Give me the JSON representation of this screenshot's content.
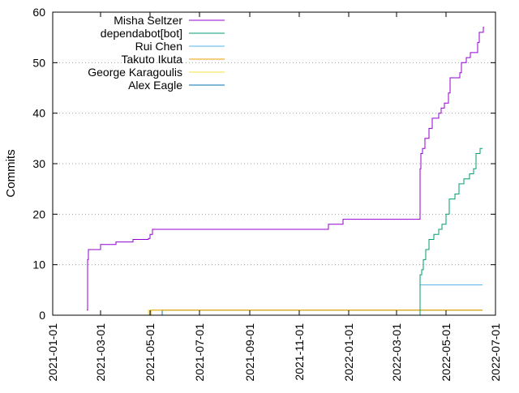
{
  "chart_data": {
    "type": "line",
    "title": "",
    "xlabel": "",
    "ylabel": "Commits",
    "x_type": "date",
    "xlim": [
      "2021-01-01",
      "2022-07-01"
    ],
    "ylim": [
      0,
      60
    ],
    "x_ticks": [
      "2021-01-01",
      "2021-03-01",
      "2021-05-01",
      "2021-07-01",
      "2021-09-01",
      "2021-11-01",
      "2022-01-01",
      "2022-03-01",
      "2022-05-01",
      "2022-07-01"
    ],
    "y_ticks": [
      0,
      10,
      20,
      30,
      40,
      50,
      60
    ],
    "grid": true,
    "grid_style": "dotted",
    "legend_position": "top-left",
    "step": true,
    "series": [
      {
        "name": "Misha Seltzer",
        "color": "#9400d3",
        "points": [
          [
            "2021-02-12",
            1
          ],
          [
            "2021-02-13",
            11
          ],
          [
            "2021-02-14",
            13
          ],
          [
            "2021-03-01",
            14
          ],
          [
            "2021-03-20",
            14.5
          ],
          [
            "2021-04-10",
            15
          ],
          [
            "2021-04-29",
            15.2
          ],
          [
            "2021-05-01",
            16
          ],
          [
            "2021-05-04",
            17
          ],
          [
            "2021-12-06",
            17
          ],
          [
            "2021-12-07",
            18
          ],
          [
            "2021-12-24",
            18
          ],
          [
            "2021-12-25",
            19
          ],
          [
            "2022-03-29",
            19
          ],
          [
            "2022-03-30",
            29
          ],
          [
            "2022-03-31",
            32
          ],
          [
            "2022-04-02",
            33
          ],
          [
            "2022-04-05",
            35
          ],
          [
            "2022-04-10",
            37
          ],
          [
            "2022-04-14",
            39
          ],
          [
            "2022-04-22",
            40
          ],
          [
            "2022-04-25",
            41
          ],
          [
            "2022-04-29",
            42
          ],
          [
            "2022-05-04",
            44
          ],
          [
            "2022-05-06",
            47
          ],
          [
            "2022-05-18",
            48
          ],
          [
            "2022-05-20",
            50
          ],
          [
            "2022-05-26",
            51
          ],
          [
            "2022-05-31",
            52
          ],
          [
            "2022-06-09",
            54
          ],
          [
            "2022-06-11",
            56
          ],
          [
            "2022-06-15",
            56
          ],
          [
            "2022-06-16",
            57
          ],
          [
            "2022-06-17",
            57
          ]
        ]
      },
      {
        "name": "dependabot[bot]",
        "color": "#009e73",
        "points": [
          [
            "2022-03-29",
            0
          ],
          [
            "2022-03-30",
            8
          ],
          [
            "2022-04-01",
            9
          ],
          [
            "2022-04-03",
            11
          ],
          [
            "2022-04-06",
            13
          ],
          [
            "2022-04-10",
            15
          ],
          [
            "2022-04-16",
            16
          ],
          [
            "2022-04-22",
            17
          ],
          [
            "2022-04-26",
            18
          ],
          [
            "2022-05-01",
            20
          ],
          [
            "2022-05-05",
            23
          ],
          [
            "2022-05-12",
            24
          ],
          [
            "2022-05-17",
            26
          ],
          [
            "2022-05-23",
            27
          ],
          [
            "2022-05-30",
            28
          ],
          [
            "2022-06-04",
            29
          ],
          [
            "2022-06-07",
            32
          ],
          [
            "2022-06-12",
            33
          ],
          [
            "2022-06-15",
            33
          ]
        ]
      },
      {
        "name": "Rui Chen",
        "color": "#56b4e9",
        "points": [
          [
            "2022-03-29",
            1
          ],
          [
            "2022-03-30",
            6
          ],
          [
            "2022-06-15",
            6
          ]
        ]
      },
      {
        "name": "Takuto Ikuta",
        "color": "#e69f00",
        "points": [
          [
            "2021-05-01",
            0
          ],
          [
            "2021-05-02",
            1
          ],
          [
            "2022-06-15",
            1
          ]
        ]
      },
      {
        "name": "George Karagoulis",
        "color": "#f0e442",
        "points": [
          [
            "2021-04-28",
            0
          ],
          [
            "2021-04-29",
            1
          ],
          [
            "2022-06-15",
            1
          ]
        ]
      },
      {
        "name": "Alex Eagle",
        "color": "#0072b2",
        "points": [
          [
            "2021-05-15",
            0
          ],
          [
            "2021-05-16",
            1
          ],
          [
            "2022-06-15",
            1
          ]
        ]
      }
    ]
  }
}
